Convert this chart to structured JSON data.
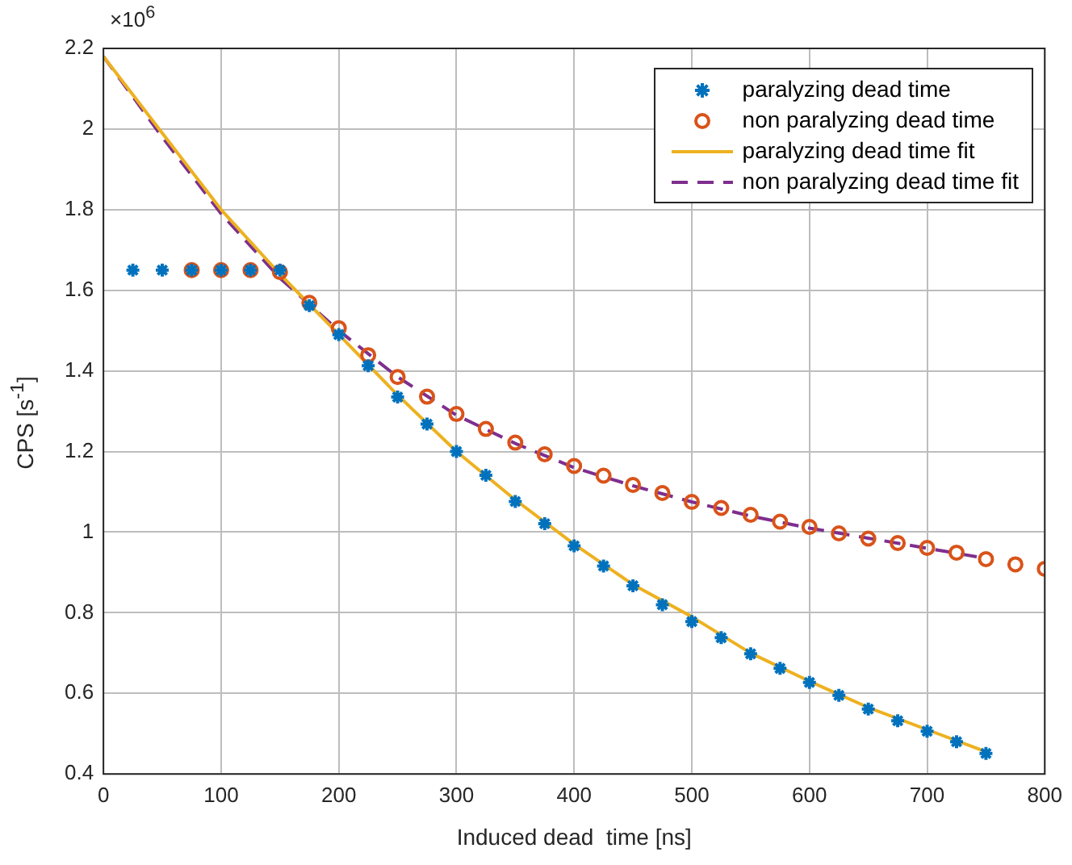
{
  "chart_data": {
    "type": "scatter",
    "xlabel": "Induced dead  time [ns]",
    "ylabel": "CPS [s$^{-1}$]",
    "annotations": [
      "×10$^{6}$"
    ],
    "xlim": [
      0,
      800
    ],
    "xticks": [
      0,
      100,
      200,
      300,
      400,
      500,
      600,
      700,
      800
    ],
    "ylim": [
      0.4,
      2.2
    ],
    "yticks": [
      0.4,
      0.6,
      0.8,
      {
        "value": 1,
        "label": "1"
      },
      1.2,
      1.4,
      1.6,
      1.8,
      {
        "value": 2,
        "label": "2"
      },
      2.2
    ],
    "grid": true,
    "legend": "top right",
    "series": [
      {
        "name": "paralyzing dead time",
        "type": "scatter",
        "marker": "cross",
        "color": "#0072bd",
        "x": [
          25,
          50,
          75,
          100,
          125,
          150,
          175,
          200,
          225,
          250,
          275,
          300,
          325,
          350,
          375,
          400,
          425,
          450,
          475,
          500,
          525,
          550,
          575,
          600,
          625,
          650,
          675,
          700,
          725,
          750
        ],
        "values": [
          1.65,
          1.65,
          1.65,
          1.65,
          1.65,
          1.65,
          1.562,
          1.49,
          1.413,
          1.335,
          1.268,
          1.2,
          1.141,
          1.076,
          1.021,
          0.966,
          0.916,
          0.867,
          0.82,
          0.778,
          0.738,
          0.698,
          0.662,
          0.627,
          0.595,
          0.561,
          0.532,
          0.506,
          0.48,
          0.451
        ]
      },
      {
        "name": "non paralyzing dead time",
        "type": "scatter",
        "marker": "circle",
        "color": "#d95319",
        "x": [
          75,
          100,
          125,
          150,
          175,
          200,
          225,
          250,
          275,
          300,
          325,
          350,
          375,
          400,
          425,
          450,
          475,
          500,
          525,
          550,
          575,
          600,
          625,
          650,
          675,
          700,
          725,
          750,
          775,
          800
        ],
        "values": [
          1.65,
          1.65,
          1.65,
          1.645,
          1.569,
          1.506,
          1.439,
          1.385,
          1.336,
          1.293,
          1.256,
          1.222,
          1.193,
          1.164,
          1.14,
          1.117,
          1.097,
          1.075,
          1.06,
          1.043,
          1.026,
          1.013,
          0.997,
          0.984,
          0.973,
          0.961,
          0.949,
          0.933,
          0.92,
          0.909
        ]
      },
      {
        "name": "paralyzing dead time fit",
        "type": "line",
        "marker": "none",
        "line_style": "solid",
        "color": "#edb120",
        "x": [
          0,
          50,
          100,
          150,
          200,
          250,
          300,
          350,
          400,
          450,
          500,
          550,
          600,
          650,
          700,
          750
        ],
        "values": [
          2.18,
          1.99,
          1.8,
          1.64,
          1.49,
          1.34,
          1.2,
          1.08,
          0.97,
          0.87,
          0.79,
          0.7,
          0.63,
          0.565,
          0.51,
          0.455
        ]
      },
      {
        "name": "non paralyzing dead time fit",
        "type": "line",
        "marker": "none",
        "line_style": "dashed",
        "color": "#7e2f8e",
        "x": [
          0,
          50,
          100,
          150,
          200,
          250,
          300,
          350,
          400,
          450,
          500,
          550,
          600,
          650,
          700,
          750
        ],
        "values": [
          2.18,
          1.98,
          1.79,
          1.63,
          1.5,
          1.385,
          1.29,
          1.22,
          1.16,
          1.115,
          1.075,
          1.04,
          1.01,
          0.985,
          0.96,
          0.935
        ]
      }
    ]
  }
}
